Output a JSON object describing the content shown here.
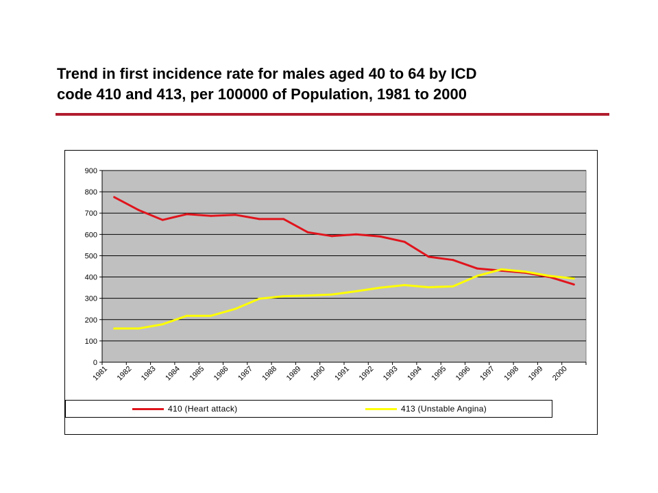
{
  "slide": {
    "title_line1": "Trend in first incidence rate for males aged 40 to 64 by ICD",
    "title_line2": "code 410 and 413, per 100000 of Population, 1981 to 2000",
    "accent_color": "#b01c2e"
  },
  "chart_data": {
    "type": "line",
    "title": "",
    "xlabel": "",
    "ylabel": "",
    "ylim": [
      0,
      900
    ],
    "yticks": [
      0,
      100,
      200,
      300,
      400,
      500,
      600,
      700,
      800,
      900
    ],
    "categories": [
      "1981",
      "1982",
      "1983",
      "1984",
      "1985",
      "1986",
      "1987",
      "1988",
      "1989",
      "1990",
      "1991",
      "1992",
      "1993",
      "1994",
      "1995",
      "1996",
      "1997",
      "1998",
      "1999",
      "2000"
    ],
    "grid": true,
    "plot_background": "#c0c0c0",
    "legend_position": "bottom",
    "series": [
      {
        "name": "410 (Heart attack)",
        "color": "#e0141c",
        "values": [
          775,
          715,
          668,
          695,
          687,
          692,
          672,
          672,
          610,
          592,
          600,
          590,
          565,
          495,
          480,
          440,
          430,
          420,
          400,
          365
        ]
      },
      {
        "name": "413 (Unstable Angina)",
        "color": "#ffff00",
        "values": [
          158,
          158,
          178,
          218,
          218,
          250,
          298,
          310,
          313,
          318,
          333,
          350,
          362,
          352,
          356,
          405,
          436,
          425,
          405,
          393
        ]
      }
    ]
  }
}
